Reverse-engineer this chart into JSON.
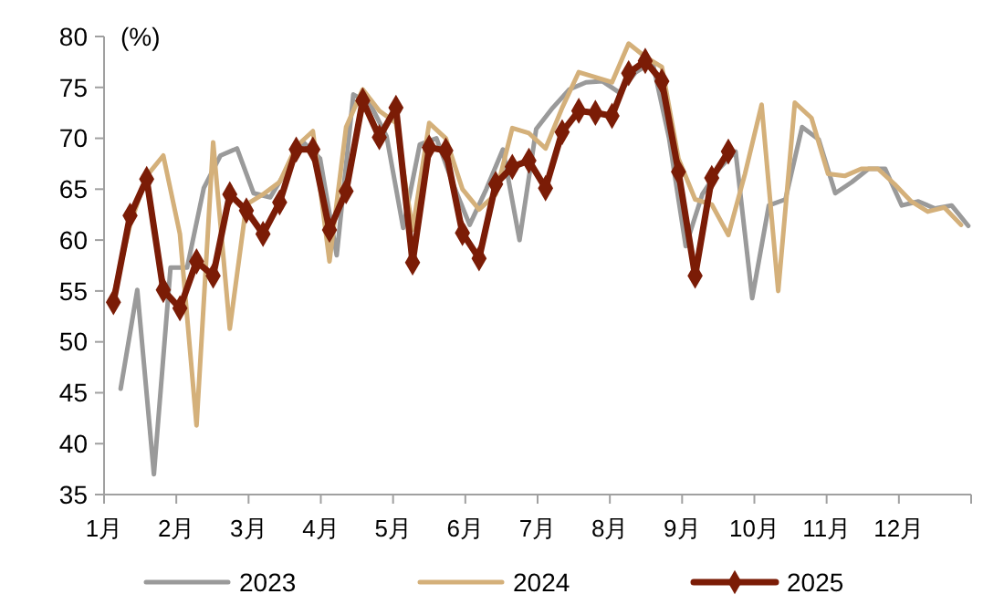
{
  "chart_data": {
    "type": "line",
    "ylabel": "(%)",
    "xlim": [
      1,
      13
    ],
    "xticks": [
      {
        "value": 1,
        "label": "1月"
      },
      {
        "value": 2,
        "label": "2月"
      },
      {
        "value": 3,
        "label": "3月"
      },
      {
        "value": 4,
        "label": "4月"
      },
      {
        "value": 5,
        "label": "5月"
      },
      {
        "value": 6,
        "label": "6月"
      },
      {
        "value": 7,
        "label": "7月"
      },
      {
        "value": 8,
        "label": "8月"
      },
      {
        "value": 9,
        "label": "9月"
      },
      {
        "value": 10,
        "label": "10月"
      },
      {
        "value": 11,
        "label": "11月"
      },
      {
        "value": 12,
        "label": "12月"
      },
      {
        "value": 13,
        "label": null
      }
    ],
    "ylim": [
      35,
      80
    ],
    "yticks": [
      35,
      40,
      45,
      50,
      55,
      60,
      65,
      70,
      75,
      80
    ],
    "grid": false,
    "legend": "bottom",
    "series": [
      {
        "name": "2023",
        "color": "#9a9a9a",
        "marker": "none",
        "x": [
          1.23,
          1.46,
          1.69,
          1.92,
          2.15,
          2.38,
          2.61,
          2.84,
          3.07,
          3.3,
          3.53,
          3.76,
          3.99,
          4.22,
          4.45,
          4.68,
          4.91,
          5.14,
          5.37,
          5.6,
          5.83,
          6.06,
          6.29,
          6.52,
          6.75,
          6.98,
          7.21,
          7.44,
          7.67,
          7.9,
          8.13,
          8.36,
          8.59,
          8.82,
          9.05,
          9.28,
          9.51,
          9.74,
          9.97,
          10.2,
          10.43,
          10.66,
          10.89,
          11.12,
          11.35,
          11.58,
          11.81,
          12.04,
          12.27,
          12.5,
          12.73,
          12.96
        ],
        "values": [
          45.4,
          55.1,
          37.0,
          57.3,
          57.3,
          65.1,
          68.3,
          69.0,
          64.6,
          64.2,
          66.9,
          69.6,
          68.0,
          58.5,
          74.3,
          73.4,
          70.2,
          61.2,
          69.4,
          70.0,
          65.5,
          61.5,
          65.0,
          68.9,
          60.0,
          70.9,
          73.0,
          74.8,
          75.5,
          75.6,
          74.5,
          76.5,
          77.5,
          70.0,
          59.4,
          64.5,
          67.0,
          68.7,
          54.3,
          63.4,
          64.0,
          71.1,
          69.9,
          64.6,
          65.7,
          67.0,
          67.0,
          63.4,
          63.8,
          63.1,
          63.4,
          61.4
        ]
      },
      {
        "name": "2024",
        "color": "#d4b07a",
        "marker": "none",
        "x": [
          1.13,
          1.36,
          1.59,
          1.82,
          2.05,
          2.28,
          2.51,
          2.74,
          2.97,
          3.2,
          3.43,
          3.66,
          3.89,
          4.12,
          4.35,
          4.58,
          4.81,
          5.04,
          5.27,
          5.5,
          5.73,
          5.96,
          6.19,
          6.42,
          6.65,
          6.88,
          7.11,
          7.34,
          7.57,
          7.8,
          8.03,
          8.26,
          8.49,
          8.72,
          8.95,
          9.18,
          9.41,
          9.64,
          9.87,
          10.1,
          10.33,
          10.56,
          10.79,
          11.02,
          11.25,
          11.48,
          11.71,
          11.94,
          12.17,
          12.4,
          12.63,
          12.86
        ],
        "values": [
          54.5,
          61.5,
          66.3,
          68.3,
          60.6,
          41.8,
          69.6,
          51.3,
          63.5,
          64.5,
          65.7,
          69.2,
          70.7,
          57.9,
          71.1,
          74.8,
          72.7,
          71.5,
          61.0,
          71.5,
          70.0,
          65.0,
          63.0,
          64.5,
          71.0,
          70.5,
          69.0,
          73.0,
          76.5,
          76.0,
          75.5,
          79.3,
          78.0,
          77.0,
          68.0,
          64.0,
          63.5,
          60.5,
          66.5,
          73.3,
          55.0,
          73.5,
          72.0,
          66.5,
          66.3,
          67.0,
          67.0,
          65.5,
          63.8,
          62.8,
          63.2,
          61.5
        ]
      },
      {
        "name": "2025",
        "color": "#7b1c06",
        "marker": "diamond",
        "x": [
          1.13,
          1.36,
          1.59,
          1.82,
          2.05,
          2.28,
          2.51,
          2.74,
          2.97,
          3.2,
          3.43,
          3.66,
          3.89,
          4.12,
          4.35,
          4.58,
          4.81,
          5.04,
          5.27,
          5.5,
          5.73,
          5.96,
          6.19,
          6.42,
          6.65,
          6.88,
          7.11,
          7.34,
          7.57,
          7.8,
          8.03,
          8.26,
          8.49,
          8.72,
          8.95,
          9.18,
          9.41,
          9.64
        ],
        "values": [
          53.9,
          62.4,
          66.0,
          55.1,
          53.3,
          57.9,
          56.5,
          64.5,
          62.9,
          60.6,
          63.7,
          68.9,
          68.9,
          61.0,
          64.8,
          73.7,
          70.1,
          73.0,
          57.8,
          69.1,
          68.8,
          60.7,
          58.2,
          65.5,
          67.2,
          67.8,
          65.1,
          70.6,
          72.7,
          72.5,
          72.2,
          76.4,
          77.6,
          75.6,
          66.7,
          56.5,
          66.1,
          68.7
        ]
      }
    ]
  }
}
